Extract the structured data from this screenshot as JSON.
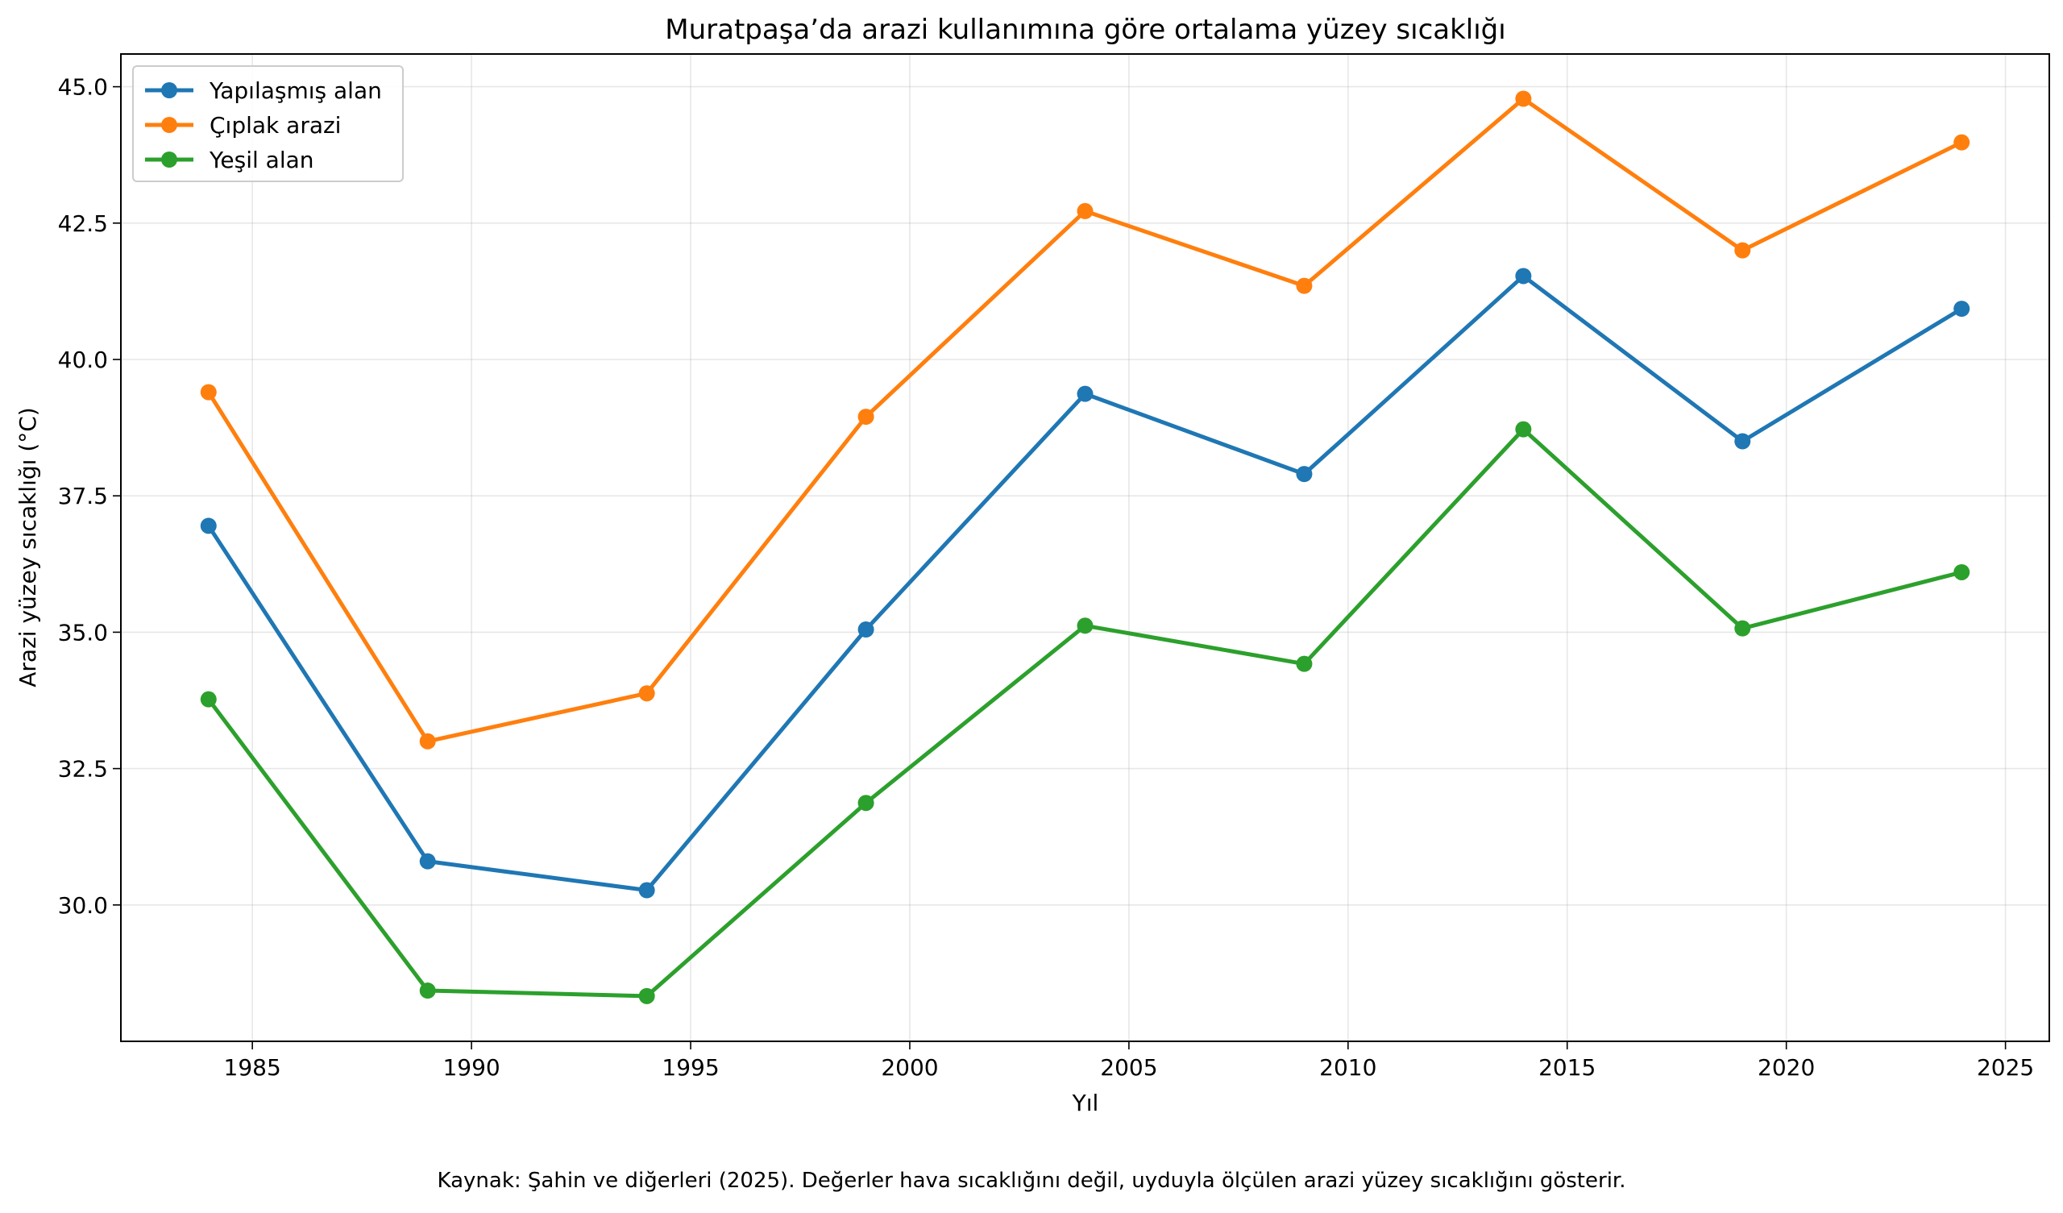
{
  "chart_data": {
    "type": "line",
    "title": "Muratpaşa’da arazi kullanımına göre ortalama yüzey sıcaklığı",
    "xlabel": "Yıl",
    "ylabel": "Arazi yüzey sıcaklığı (°C)",
    "x": [
      1984,
      1989,
      1994,
      1999,
      2004,
      2009,
      2014,
      2019,
      2024
    ],
    "xlim": [
      1982,
      2026
    ],
    "ylim": [
      27.5,
      45.6
    ],
    "xticks": [
      1985,
      1990,
      1995,
      2000,
      2005,
      2010,
      2015,
      2020,
      2025
    ],
    "yticks": [
      30.0,
      32.5,
      35.0,
      37.5,
      40.0,
      42.5,
      45.0
    ],
    "xtick_labels": [
      "1985",
      "1990",
      "1995",
      "2000",
      "2005",
      "2010",
      "2015",
      "2020",
      "2025"
    ],
    "ytick_labels": [
      "30.0",
      "32.5",
      "35.0",
      "37.5",
      "40.0",
      "42.5",
      "45.0"
    ],
    "grid": true,
    "legend_position": "top-left",
    "series": [
      {
        "name": "Yapılaşmış alan",
        "color": "#1f77b4",
        "values": [
          36.95,
          30.8,
          30.27,
          35.05,
          39.37,
          37.9,
          41.53,
          38.5,
          40.93
        ]
      },
      {
        "name": "Çıplak arazi",
        "color": "#ff7f0e",
        "values": [
          39.4,
          33.0,
          33.88,
          38.95,
          42.72,
          41.35,
          44.78,
          42.0,
          43.98
        ]
      },
      {
        "name": "Yeşil alan",
        "color": "#2ca02c",
        "values": [
          33.77,
          28.43,
          28.33,
          31.87,
          35.12,
          34.42,
          38.72,
          35.07,
          36.1
        ]
      }
    ]
  },
  "caption": "Kaynak: Şahin ve diğerleri (2025). Değerler hava sıcaklığını değil, uyduyla ölçülen arazi yüzey sıcaklığını gösterir."
}
